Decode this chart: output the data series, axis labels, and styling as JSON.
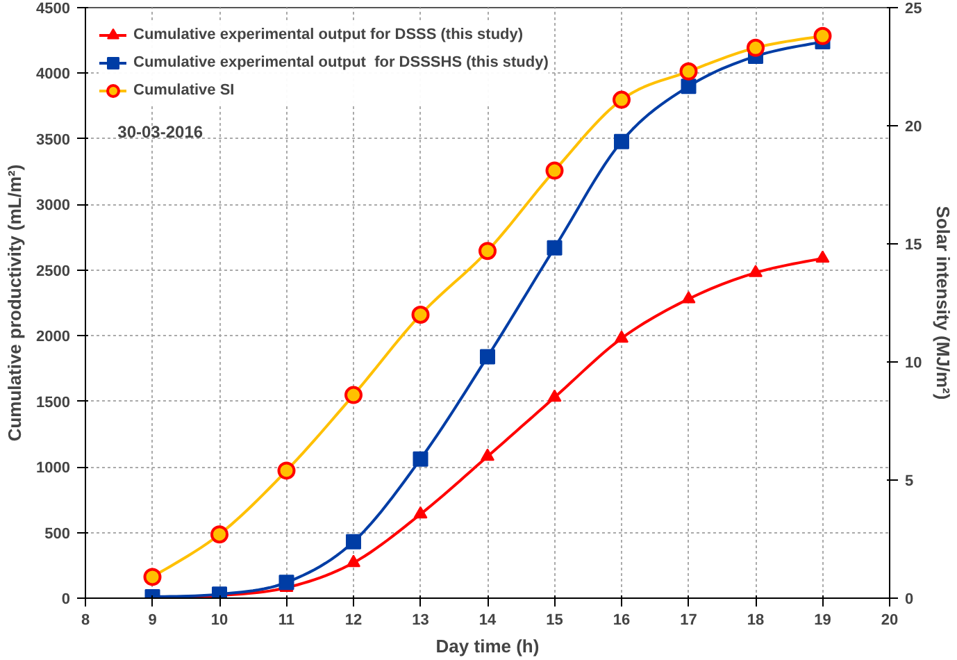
{
  "chart_data": {
    "type": "line",
    "x": [
      9,
      10,
      11,
      12,
      13,
      14,
      15,
      16,
      17,
      18,
      19
    ],
    "series": [
      {
        "name": "Cumulative experimental output for DSSS (this study)",
        "color": "#ff0000",
        "marker": "triangle",
        "values": [
          0,
          20,
          80,
          270,
          640,
          1080,
          1530,
          1980,
          2280,
          2480,
          2590
        ]
      },
      {
        "name": "Cumulative experimental output  for DSSSHS (this study)",
        "color": "#003da5",
        "marker": "square",
        "values": [
          10,
          30,
          120,
          430,
          1060,
          1840,
          2670,
          3480,
          3900,
          4130,
          4240
        ]
      },
      {
        "name": "Cumulative SI",
        "color": "#ffc000",
        "marker": "circle",
        "axis": "y2",
        "values": [
          0.9,
          2.7,
          5.4,
          8.6,
          12.0,
          14.7,
          18.1,
          21.1,
          22.3,
          23.3,
          23.8
        ]
      }
    ],
    "xlabel": "Day time (h)",
    "ylabel": "Cumulative productivity (mL/m²)",
    "y2label": "Solar intensity (MJ/m²)",
    "xlim": [
      8,
      20
    ],
    "xticks": [
      8,
      9,
      10,
      11,
      12,
      13,
      14,
      15,
      16,
      17,
      18,
      19,
      20
    ],
    "ylim": [
      0,
      4500
    ],
    "yticks": [
      0,
      500,
      1000,
      1500,
      2000,
      2500,
      3000,
      3500,
      4000,
      4500
    ],
    "y2lim": [
      0,
      25
    ],
    "y2ticks": [
      0,
      5,
      10,
      15,
      20,
      25
    ],
    "annotations": [
      "30-03-2016"
    ],
    "grid": true,
    "legend": "top",
    "line_style": "solid"
  }
}
